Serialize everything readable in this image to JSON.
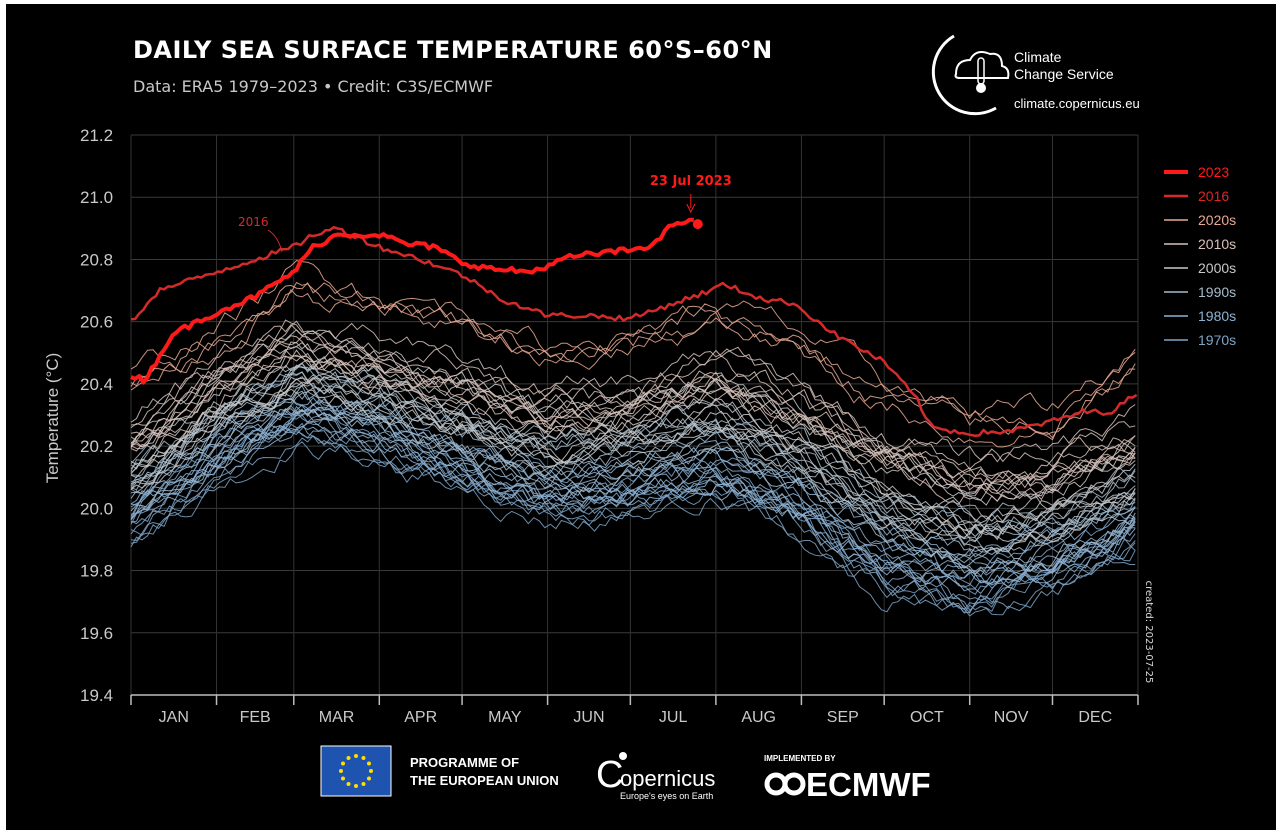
{
  "header": {
    "title": "DAILY SEA SURFACE TEMPERATURE 60°S–60°N",
    "subtitle": "Data: ERA5 1979–2023 • Credit: C3S/ECMWF"
  },
  "brand": {
    "line1": "Climate",
    "line2": "Change Service",
    "url": "climate.copernicus.eu"
  },
  "footer": {
    "programme_line1": "PROGRAMME OF",
    "programme_line2": "THE EUROPEAN UNION",
    "copernicus": "opernicus",
    "copernicus_letter": "C",
    "copernicus_tagline": "Europe's eyes on Earth",
    "implemented_by": "IMPLEMENTED BY",
    "ecmwf": "ECMWF"
  },
  "watermark": "created: 2023-07-25",
  "colors": {
    "background": "#000000",
    "y2023": "#ff1a1a",
    "y2016": "#d42a2a",
    "d2020s": "#e9a993",
    "d2010s": "#d8c2ba",
    "d2000s": "#c9c9c9",
    "d1990s": "#a6bccd",
    "d1980s": "#8fb3d3",
    "d1970s": "#7ea5c8"
  },
  "chart_data": {
    "type": "line",
    "title": "DAILY SEA SURFACE TEMPERATURE 60°S–60°N",
    "ylabel": "Temperature (°C)",
    "xlabel": "",
    "ylim": [
      19.4,
      21.2
    ],
    "xlim": [
      0,
      365
    ],
    "grid": true,
    "legend_position": "right",
    "yticks": [
      "19.4",
      "19.6",
      "19.8",
      "20.0",
      "20.2",
      "20.4",
      "20.6",
      "20.8",
      "21.0",
      "21.2"
    ],
    "ytick_values": [
      19.4,
      19.6,
      19.8,
      20.0,
      20.2,
      20.4,
      20.6,
      20.8,
      21.0,
      21.2
    ],
    "months": [
      "JAN",
      "FEB",
      "MAR",
      "APR",
      "MAY",
      "JUN",
      "JUL",
      "AUG",
      "SEP",
      "OCT",
      "NOV",
      "DEC"
    ],
    "month_starts": [
      0,
      31,
      59,
      90,
      120,
      151,
      181,
      212,
      243,
      273,
      304,
      334,
      365
    ],
    "legend": [
      {
        "label": "2023",
        "color": "#ff1a1a",
        "width": 4
      },
      {
        "label": "2016",
        "color": "#d42a2a",
        "width": 2.5
      },
      {
        "label": "2020s",
        "color": "#e9a993",
        "width": 1.5
      },
      {
        "label": "2010s",
        "color": "#d8c2ba",
        "width": 1.5
      },
      {
        "label": "2000s",
        "color": "#c9c9c9",
        "width": 1.5
      },
      {
        "label": "1990s",
        "color": "#a6bccd",
        "width": 1.5
      },
      {
        "label": "1980s",
        "color": "#8fb3d3",
        "width": 1.5
      },
      {
        "label": "1970s",
        "color": "#7ea5c8",
        "width": 1.5
      }
    ],
    "annotations": [
      {
        "text": "23 Jul 2023",
        "x": 204,
        "y": 20.92,
        "color": "#ff1a1a"
      },
      {
        "text": "2016",
        "x": 46,
        "y": 20.82,
        "color": "#d42a2a"
      }
    ],
    "series": [
      {
        "name": "2023",
        "color": "#ff1a1a",
        "x": [
          0,
          5,
          15,
          31,
          45,
          59,
          66,
          75,
          90,
          100,
          110,
          120,
          130,
          145,
          160,
          170,
          181,
          190,
          197,
          204
        ],
        "y": [
          20.43,
          20.41,
          20.56,
          20.63,
          20.68,
          20.76,
          20.84,
          20.88,
          20.88,
          20.85,
          20.84,
          20.79,
          20.77,
          20.76,
          20.81,
          20.82,
          20.83,
          20.85,
          20.92,
          20.92
        ]
      },
      {
        "name": "2016",
        "color": "#d42a2a",
        "x": [
          0,
          10,
          31,
          45,
          59,
          66,
          75,
          90,
          105,
          120,
          135,
          151,
          165,
          181,
          197,
          210,
          215,
          230,
          240,
          255,
          273,
          285,
          290,
          304,
          320,
          334,
          345,
          355,
          365
        ],
        "y": [
          20.6,
          20.7,
          20.76,
          20.8,
          20.84,
          20.88,
          20.9,
          20.84,
          20.8,
          20.75,
          20.67,
          20.62,
          20.62,
          20.61,
          20.66,
          20.7,
          20.72,
          20.67,
          20.66,
          20.56,
          20.47,
          20.35,
          20.26,
          20.24,
          20.25,
          20.28,
          20.31,
          20.31,
          20.37
        ]
      },
      {
        "name": "2020s",
        "color": "#e9a993",
        "x": [
          0,
          31,
          59,
          90,
          120,
          151,
          181,
          212,
          243,
          273,
          304,
          334,
          365
        ],
        "y": [
          20.38,
          20.52,
          20.7,
          20.64,
          20.58,
          20.46,
          20.5,
          20.6,
          20.5,
          20.34,
          20.25,
          20.26,
          20.45
        ]
      },
      {
        "name": "2010s",
        "color": "#d8c2ba",
        "x": [
          0,
          31,
          59,
          90,
          120,
          151,
          181,
          212,
          243,
          273,
          304,
          334,
          365
        ],
        "y": [
          20.25,
          20.42,
          20.56,
          20.5,
          20.42,
          20.33,
          20.36,
          20.45,
          20.35,
          20.2,
          20.12,
          20.14,
          20.25
        ]
      },
      {
        "name": "2000s",
        "color": "#c9c9c9",
        "x": [
          0,
          31,
          59,
          90,
          120,
          151,
          181,
          212,
          243,
          273,
          304,
          334,
          365
        ],
        "y": [
          20.15,
          20.34,
          20.48,
          20.42,
          20.33,
          20.24,
          20.27,
          20.35,
          20.24,
          20.07,
          19.99,
          20.02,
          20.14
        ]
      },
      {
        "name": "1990s",
        "color": "#a6bccd",
        "x": [
          0,
          31,
          59,
          90,
          120,
          151,
          181,
          212,
          243,
          273,
          304,
          334,
          365
        ],
        "y": [
          20.08,
          20.26,
          20.4,
          20.34,
          20.25,
          20.15,
          20.18,
          20.24,
          20.13,
          19.98,
          19.9,
          19.93,
          20.05
        ]
      },
      {
        "name": "1980s",
        "color": "#8fb3d3",
        "x": [
          0,
          31,
          59,
          90,
          120,
          151,
          181,
          212,
          243,
          273,
          304,
          334,
          365
        ],
        "y": [
          20.03,
          20.2,
          20.33,
          20.28,
          20.18,
          20.08,
          20.1,
          20.16,
          20.05,
          19.88,
          19.82,
          19.86,
          19.98
        ]
      },
      {
        "name": "1970s",
        "color": "#7ea5c8",
        "x": [
          0,
          31,
          59,
          90,
          120,
          151,
          181,
          212,
          243,
          273,
          304,
          334,
          365
        ],
        "y": [
          19.95,
          20.14,
          20.28,
          20.22,
          20.12,
          20.02,
          20.05,
          20.1,
          19.98,
          19.8,
          19.72,
          19.8,
          19.92
        ]
      }
    ]
  }
}
